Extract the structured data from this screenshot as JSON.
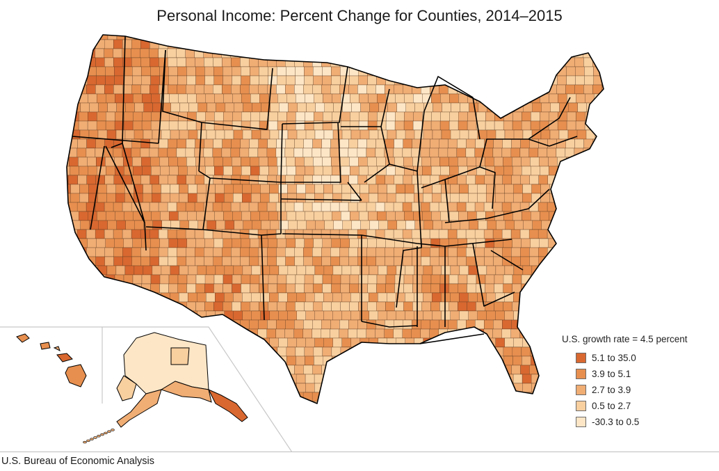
{
  "title": "Personal Income: Percent Change for Counties, 2014–2015",
  "legend": {
    "title": "U.S. growth rate = 4.5 percent",
    "bins": [
      {
        "label": "5.1 to 35.0",
        "color": "#d86830"
      },
      {
        "label": "3.9 to 5.1",
        "color": "#e78f4f"
      },
      {
        "label": "2.7 to 3.9",
        "color": "#f0ad74"
      },
      {
        "label": "0.5 to 2.7",
        "color": "#f8cf9f"
      },
      {
        "label": "-30.3 to 0.5",
        "color": "#fde6c6"
      }
    ]
  },
  "source": "U.S. Bureau of Economic Analysis",
  "colors": {
    "county_border": "#5a3a22",
    "state_border": "#000000",
    "inset_border": "#c8c8c8"
  }
}
